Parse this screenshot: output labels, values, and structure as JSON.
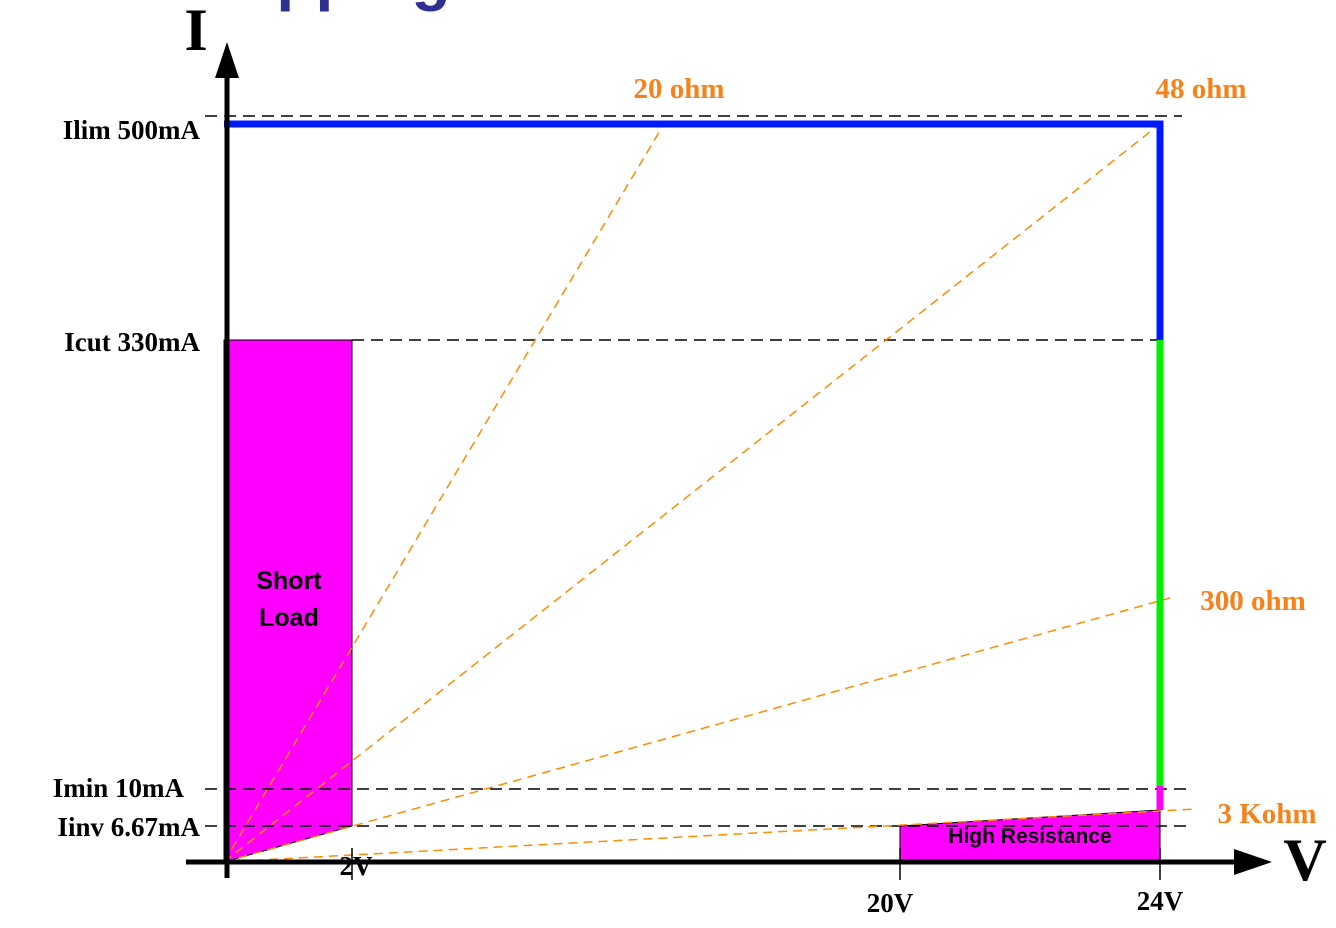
{
  "page": {
    "title_fragment": "ad Mapping"
  },
  "axes": {
    "y_label": "I",
    "x_label": "V"
  },
  "current_levels": {
    "ilim": "Ilim 500mA",
    "icut": "Icut 330mA",
    "imin": "Imin 10mA",
    "iinv": "Iinv 6.67mA"
  },
  "voltage_levels": {
    "v2": "2V",
    "v20": "20V",
    "v24": "24V"
  },
  "load_lines": {
    "r20": "20 ohm",
    "r48": "48 ohm",
    "r300": "300 ohm",
    "r3k": "3 Kohm"
  },
  "regions": {
    "short_load_line1": "Short",
    "short_load_line2": "Load",
    "high_resistance": "High Resistance"
  },
  "colors": {
    "axis": "#000000",
    "title": "#2e3192",
    "limit_curve": "#0018ff",
    "normal_range": "#00ee00",
    "region_fill": "#ff00ff",
    "load_line": "#ff8c00",
    "load_label": "#f7821b"
  }
}
